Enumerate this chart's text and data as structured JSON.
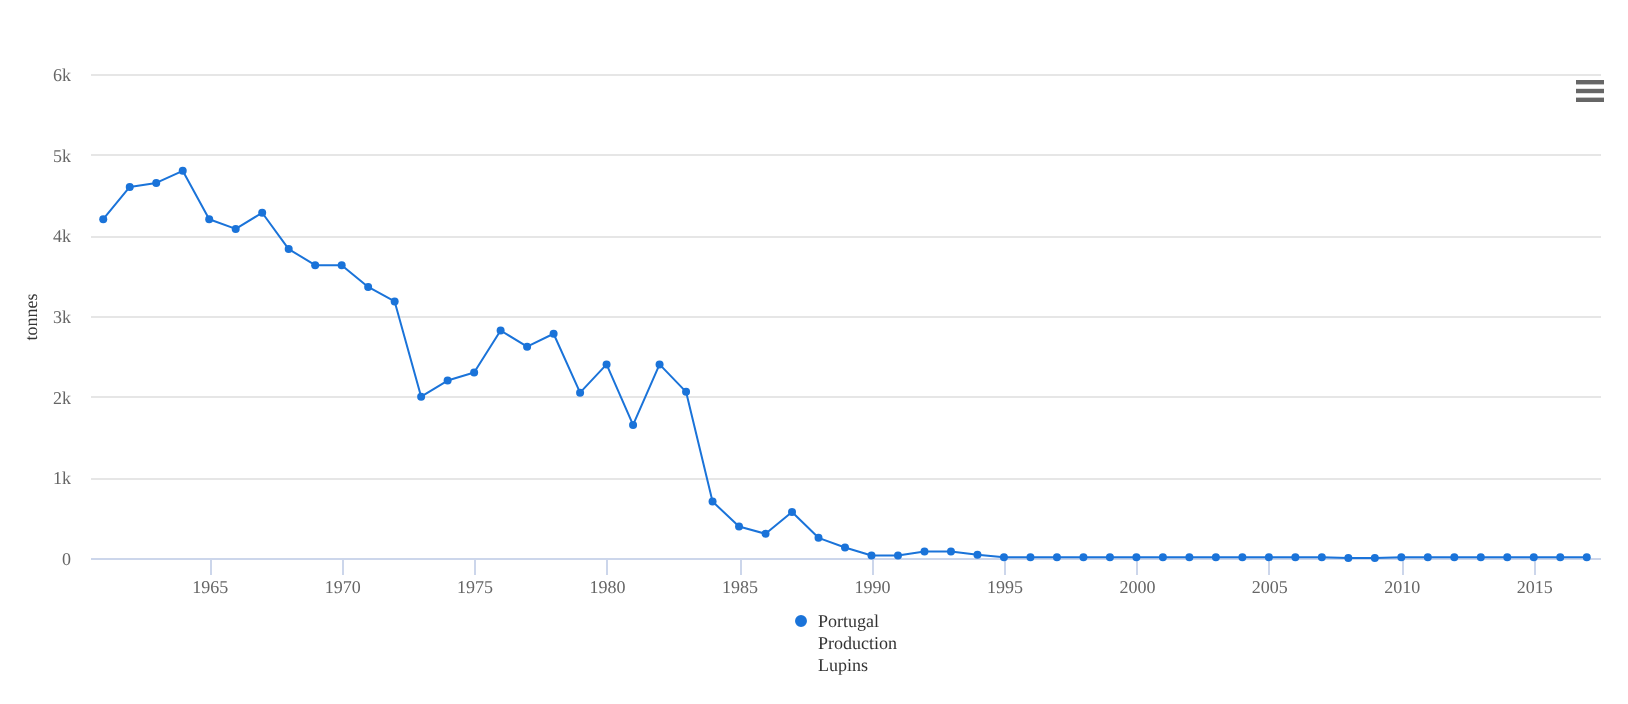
{
  "chart_data": {
    "type": "line",
    "ylabel": "tonnes",
    "x": [
      1961,
      1962,
      1963,
      1964,
      1965,
      1966,
      1967,
      1968,
      1969,
      1970,
      1971,
      1972,
      1973,
      1974,
      1975,
      1976,
      1977,
      1978,
      1979,
      1980,
      1981,
      1982,
      1983,
      1984,
      1985,
      1986,
      1987,
      1988,
      1989,
      1990,
      1991,
      1992,
      1993,
      1994,
      1995,
      1996,
      1997,
      1998,
      1999,
      2000,
      2001,
      2002,
      2003,
      2004,
      2005,
      2006,
      2007,
      2008,
      2009,
      2010,
      2011,
      2012,
      2013,
      2014,
      2015,
      2016,
      2017
    ],
    "series": [
      {
        "name": "Portugal Production Lupins",
        "color": "#1a73d9",
        "values": [
          4200,
          4600,
          4650,
          4800,
          4200,
          4080,
          4280,
          3830,
          3630,
          3630,
          3360,
          3180,
          2000,
          2200,
          2300,
          2820,
          2620,
          2780,
          2050,
          2400,
          1650,
          2400,
          2060,
          700,
          390,
          300,
          570,
          250,
          130,
          30,
          30,
          80,
          80,
          40,
          10,
          10,
          10,
          10,
          10,
          10,
          10,
          10,
          10,
          10,
          10,
          10,
          10,
          0,
          0,
          10,
          10,
          10,
          10,
          10,
          10,
          10,
          10
        ]
      }
    ],
    "xlim": [
      1960.5,
      2017.5
    ],
    "xticks": [
      1965,
      1970,
      1975,
      1980,
      1985,
      1990,
      1995,
      2000,
      2005,
      2010,
      2015
    ],
    "ylim": [
      0,
      6000
    ],
    "yticks": [
      {
        "value": 0,
        "label": "0"
      },
      {
        "value": 1000,
        "label": "1k"
      },
      {
        "value": 2000,
        "label": "2k"
      },
      {
        "value": 3000,
        "label": "3k"
      },
      {
        "value": 4000,
        "label": "4k"
      },
      {
        "value": 5000,
        "label": "5k"
      },
      {
        "value": 6000,
        "label": "6k"
      }
    ],
    "grid": "y",
    "legend": "bottom",
    "marker": "circle",
    "line_style": "solid"
  }
}
